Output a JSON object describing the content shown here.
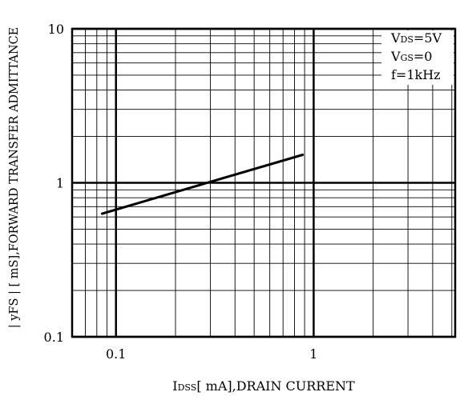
{
  "chart_data": {
    "type": "line",
    "title": "",
    "xlabel": {
      "sub": "DSS",
      "rest": "[ mA],DRAIN  CURRENT"
    },
    "ylabel": "| yFS | [ mS],FORWARD  TRANSFER  ADMITTANCE",
    "x_scale": "log",
    "y_scale": "log",
    "xlim": [
      0.06,
      5.2
    ],
    "ylim": [
      0.1,
      10
    ],
    "x_ticks": [
      {
        "value": 0.1,
        "label": "0.1"
      },
      {
        "value": 1,
        "label": "1"
      }
    ],
    "y_ticks": [
      {
        "value": 10,
        "label": "10"
      },
      {
        "value": 1,
        "label": "1"
      },
      {
        "value": 0.1,
        "label": "0.1"
      }
    ],
    "grid": true,
    "series": [
      {
        "x": [
          0.085,
          0.88
        ],
        "y": [
          0.63,
          1.52
        ]
      }
    ],
    "conditions": [
      {
        "sub": "DS",
        "rest": "=5V"
      },
      {
        "sub": "GS",
        "rest": "=0"
      },
      {
        "text": "f=1kHz"
      }
    ]
  }
}
